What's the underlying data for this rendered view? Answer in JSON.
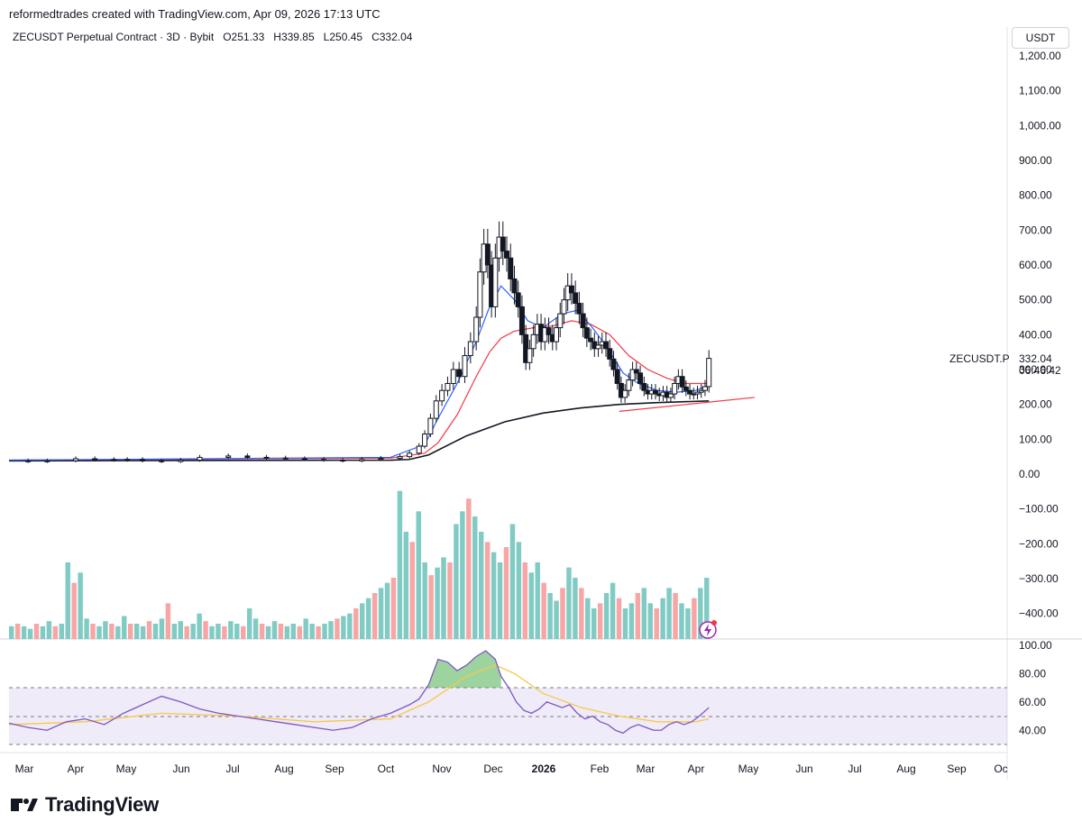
{
  "header": {
    "attribution": "reformedtrades created with TradingView.com, Apr 09, 2026 17:13 UTC"
  },
  "legend": {
    "symbol": "ZECUSDT Perpetual Contract · 3D · Bybit",
    "o_label": "O",
    "o_value": "251.33",
    "h_label": "H",
    "h_value": "339.85",
    "l_label": "L",
    "l_value": "250.45",
    "c_label": "C",
    "c_value": "332.04"
  },
  "price_axis": {
    "currency": "USDT",
    "ticks": [
      "1,200.00",
      "1,100.00",
      "1,000.00",
      "900.00",
      "800.00",
      "700.00",
      "600.00",
      "500.00",
      "400.00",
      "300.00",
      "200.00",
      "100.00",
      "0.00",
      "−100.00",
      "−200.00",
      "−300.00",
      "−400.00"
    ],
    "last_symbol": "ZECUSDT.P",
    "last_price": "332.04",
    "countdown": "06:46:42"
  },
  "rsi_axis": {
    "ticks": [
      "100.00",
      "80.00",
      "60.00",
      "40.00"
    ]
  },
  "time_axis": {
    "labels": [
      "Mar",
      "Apr",
      "May",
      "Jun",
      "Jul",
      "Aug",
      "Sep",
      "Oct",
      "Nov",
      "Dec",
      "2026",
      "Feb",
      "Mar",
      "Apr",
      "May",
      "Jun",
      "Jul",
      "Aug",
      "Sep",
      "Oc"
    ]
  },
  "brand": {
    "name": "TradingView"
  },
  "colors": {
    "up": "#ffffff",
    "down": "#131722",
    "ema_fast": "#2962ff",
    "ema_slow": "#f23645",
    "sma_long": "#131722",
    "vol_up": "#80cbc4",
    "vol_down": "#f7a5a5",
    "rsi": "#7e57c2",
    "rsi_ma": "#f7c948",
    "trend": "#f23645"
  },
  "chart_data": {
    "type": "candlestick",
    "title": "ZECUSDT Perpetual Contract · 3D · Bybit",
    "ylabel": "USDT",
    "ylim": [
      -450,
      1230
    ],
    "x_range": [
      "2025-03",
      "2026-10"
    ],
    "price_path": [
      [
        0,
        38
      ],
      [
        10,
        36
      ],
      [
        20,
        38
      ],
      [
        35,
        44
      ],
      [
        45,
        42
      ],
      [
        55,
        40
      ],
      [
        62,
        42
      ],
      [
        70,
        38
      ],
      [
        80,
        36
      ],
      [
        90,
        40
      ],
      [
        100,
        48
      ],
      [
        115,
        52
      ],
      [
        125,
        48
      ],
      [
        135,
        46
      ],
      [
        145,
        44
      ],
      [
        155,
        42
      ],
      [
        165,
        40
      ],
      [
        175,
        38
      ],
      [
        185,
        42
      ],
      [
        195,
        45
      ],
      [
        205,
        50
      ],
      [
        210,
        60
      ],
      [
        215,
        80
      ],
      [
        218,
        115
      ],
      [
        221,
        160
      ],
      [
        224,
        210
      ],
      [
        227,
        240
      ],
      [
        230,
        260
      ],
      [
        233,
        300
      ],
      [
        236,
        280
      ],
      [
        239,
        340
      ],
      [
        242,
        380
      ],
      [
        245,
        450
      ],
      [
        247,
        580
      ],
      [
        249,
        660
      ],
      [
        251,
        600
      ],
      [
        253,
        480
      ],
      [
        255,
        620
      ],
      [
        257,
        680
      ],
      [
        259,
        640
      ],
      [
        261,
        620
      ],
      [
        263,
        560
      ],
      [
        265,
        520
      ],
      [
        267,
        480
      ],
      [
        269,
        400
      ],
      [
        271,
        320
      ],
      [
        273,
        360
      ],
      [
        275,
        400
      ],
      [
        277,
        430
      ],
      [
        279,
        380
      ],
      [
        281,
        420
      ],
      [
        283,
        400
      ],
      [
        285,
        380
      ],
      [
        287,
        420
      ],
      [
        289,
        460
      ],
      [
        291,
        500
      ],
      [
        293,
        540
      ],
      [
        295,
        520
      ],
      [
        297,
        490
      ],
      [
        299,
        460
      ],
      [
        301,
        420
      ],
      [
        303,
        390
      ],
      [
        305,
        380
      ],
      [
        307,
        360
      ],
      [
        309,
        370
      ],
      [
        311,
        380
      ],
      [
        313,
        360
      ],
      [
        315,
        330
      ],
      [
        317,
        300
      ],
      [
        319,
        260
      ],
      [
        321,
        220
      ],
      [
        323,
        240
      ],
      [
        325,
        270
      ],
      [
        327,
        300
      ],
      [
        329,
        290
      ],
      [
        331,
        260
      ],
      [
        333,
        240
      ],
      [
        335,
        230
      ],
      [
        337,
        240
      ],
      [
        339,
        230
      ],
      [
        341,
        225
      ],
      [
        343,
        235
      ],
      [
        345,
        220
      ],
      [
        347,
        230
      ],
      [
        349,
        260
      ],
      [
        351,
        280
      ],
      [
        353,
        250
      ],
      [
        355,
        240
      ],
      [
        357,
        230
      ],
      [
        359,
        230
      ],
      [
        361,
        235
      ],
      [
        363,
        240
      ],
      [
        365,
        251
      ],
      [
        367,
        332
      ]
    ],
    "ema_fast": [
      [
        0,
        40
      ],
      [
        200,
        48
      ],
      [
        218,
        85
      ],
      [
        225,
        160
      ],
      [
        235,
        260
      ],
      [
        245,
        380
      ],
      [
        252,
        480
      ],
      [
        258,
        540
      ],
      [
        265,
        500
      ],
      [
        272,
        440
      ],
      [
        280,
        420
      ],
      [
        290,
        460
      ],
      [
        298,
        470
      ],
      [
        306,
        420
      ],
      [
        314,
        360
      ],
      [
        322,
        290
      ],
      [
        330,
        260
      ],
      [
        340,
        240
      ],
      [
        350,
        235
      ],
      [
        360,
        240
      ],
      [
        367,
        255
      ]
    ],
    "ema_slow": [
      [
        0,
        40
      ],
      [
        200,
        46
      ],
      [
        218,
        60
      ],
      [
        225,
        90
      ],
      [
        235,
        170
      ],
      [
        245,
        280
      ],
      [
        252,
        350
      ],
      [
        258,
        390
      ],
      [
        265,
        410
      ],
      [
        275,
        420
      ],
      [
        285,
        425
      ],
      [
        295,
        440
      ],
      [
        305,
        430
      ],
      [
        315,
        400
      ],
      [
        325,
        340
      ],
      [
        335,
        300
      ],
      [
        345,
        275
      ],
      [
        355,
        260
      ],
      [
        367,
        260
      ]
    ],
    "sma_long": [
      [
        0,
        38
      ],
      [
        200,
        40
      ],
      [
        210,
        42
      ],
      [
        220,
        55
      ],
      [
        240,
        110
      ],
      [
        260,
        150
      ],
      [
        280,
        175
      ],
      [
        300,
        190
      ],
      [
        320,
        200
      ],
      [
        340,
        205
      ],
      [
        367,
        210
      ]
    ],
    "trendline": [
      [
        320,
        180
      ],
      [
        391,
        220
      ]
    ],
    "volume": [
      5,
      6,
      5,
      4,
      6,
      5,
      7,
      5,
      6,
      30,
      22,
      26,
      8,
      6,
      5,
      7,
      6,
      5,
      9,
      6,
      6,
      5,
      7,
      6,
      8,
      14,
      6,
      7,
      5,
      6,
      10,
      7,
      5,
      6,
      5,
      7,
      6,
      5,
      12,
      8,
      6,
      5,
      7,
      6,
      5,
      6,
      5,
      8,
      6,
      5,
      6,
      7,
      8,
      9,
      10,
      12,
      14,
      16,
      18,
      20,
      22,
      24,
      58,
      42,
      38,
      50,
      30,
      25,
      28,
      32,
      30,
      45,
      50,
      55,
      48,
      42,
      38,
      34,
      30,
      36,
      45,
      38,
      30,
      26,
      30,
      22,
      18,
      15,
      20,
      28,
      24,
      20,
      16,
      12,
      14,
      18,
      22,
      16,
      12,
      14,
      18,
      20,
      14,
      12,
      16,
      20,
      18,
      14,
      12,
      16,
      20,
      24
    ],
    "rsi": [
      [
        0,
        45
      ],
      [
        10,
        42
      ],
      [
        20,
        40
      ],
      [
        30,
        46
      ],
      [
        40,
        48
      ],
      [
        50,
        44
      ],
      [
        60,
        52
      ],
      [
        70,
        58
      ],
      [
        80,
        64
      ],
      [
        90,
        60
      ],
      [
        100,
        55
      ],
      [
        110,
        52
      ],
      [
        120,
        50
      ],
      [
        130,
        48
      ],
      [
        140,
        46
      ],
      [
        150,
        44
      ],
      [
        160,
        42
      ],
      [
        170,
        40
      ],
      [
        180,
        42
      ],
      [
        190,
        48
      ],
      [
        200,
        52
      ],
      [
        210,
        58
      ],
      [
        215,
        62
      ],
      [
        220,
        72
      ],
      [
        225,
        90
      ],
      [
        230,
        88
      ],
      [
        235,
        82
      ],
      [
        240,
        86
      ],
      [
        245,
        92
      ],
      [
        250,
        96
      ],
      [
        255,
        90
      ],
      [
        258,
        78
      ],
      [
        262,
        70
      ],
      [
        266,
        60
      ],
      [
        270,
        54
      ],
      [
        274,
        52
      ],
      [
        278,
        55
      ],
      [
        282,
        60
      ],
      [
        286,
        58
      ],
      [
        290,
        56
      ],
      [
        294,
        58
      ],
      [
        298,
        52
      ],
      [
        302,
        48
      ],
      [
        306,
        50
      ],
      [
        310,
        46
      ],
      [
        314,
        44
      ],
      [
        318,
        40
      ],
      [
        322,
        38
      ],
      [
        326,
        42
      ],
      [
        330,
        44
      ],
      [
        334,
        42
      ],
      [
        338,
        40
      ],
      [
        342,
        40
      ],
      [
        346,
        44
      ],
      [
        350,
        46
      ],
      [
        354,
        44
      ],
      [
        358,
        46
      ],
      [
        362,
        50
      ],
      [
        367,
        56
      ]
    ],
    "rsi_ma": [
      [
        0,
        44
      ],
      [
        40,
        46
      ],
      [
        80,
        52
      ],
      [
        120,
        50
      ],
      [
        160,
        46
      ],
      [
        200,
        48
      ],
      [
        220,
        60
      ],
      [
        240,
        78
      ],
      [
        255,
        86
      ],
      [
        265,
        80
      ],
      [
        280,
        66
      ],
      [
        300,
        56
      ],
      [
        320,
        50
      ],
      [
        340,
        46
      ],
      [
        360,
        46
      ],
      [
        367,
        48
      ]
    ]
  }
}
